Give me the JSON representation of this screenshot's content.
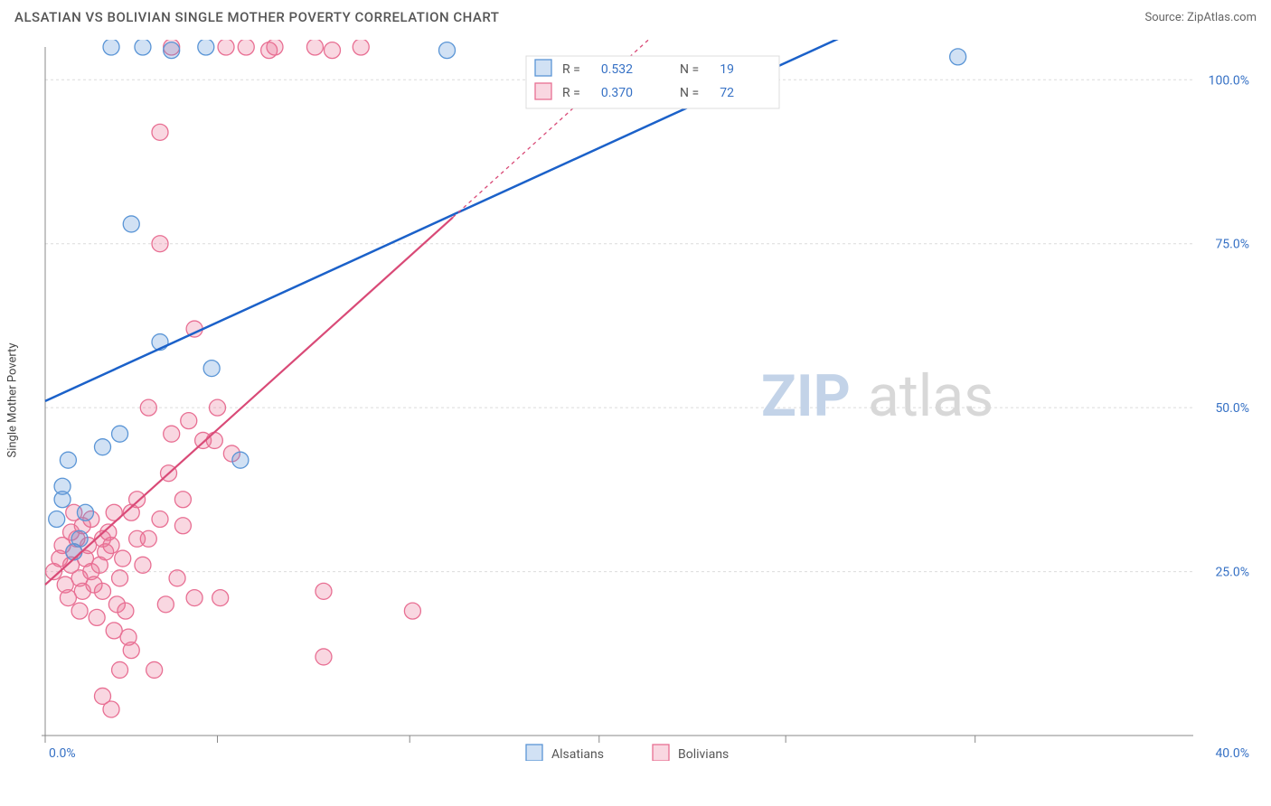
{
  "header": {
    "title": "ALSATIAN VS BOLIVIAN SINGLE MOTHER POVERTY CORRELATION CHART",
    "source_prefix": "Source: ",
    "source_name": "ZipAtlas.com"
  },
  "chart": {
    "type": "scatter",
    "ylabel": "Single Mother Poverty",
    "background_color": "#ffffff",
    "grid_color": "#dcdcdc",
    "axis_color": "#888888",
    "xlim": [
      0,
      40
    ],
    "ylim": [
      0,
      105
    ],
    "x_ticks": [
      0.0,
      40.0
    ],
    "x_tick_labels": [
      "0.0%",
      "40.0%"
    ],
    "x_minor_ticks": [
      6.0,
      12.7,
      19.3,
      25.8,
      32.4
    ],
    "y_ticks": [
      25.0,
      50.0,
      75.0,
      100.0
    ],
    "y_tick_labels": [
      "25.0%",
      "50.0%",
      "75.0%",
      "100.0%"
    ],
    "marker_radius": 9,
    "marker_fill_opacity": 0.28,
    "watermark_zip": "ZIP",
    "watermark_atlas": "atlas",
    "watermark_fontsize": 64,
    "series": [
      {
        "name": "Alsatians",
        "color": "#5a95d6",
        "stroke": "#5a95d6",
        "R": "0.532",
        "N": "19",
        "trend_color": "#1b61c9",
        "trend_width": 2.5,
        "trend_p1": [
          0,
          51
        ],
        "trend_p2": [
          40,
          131
        ],
        "points": [
          [
            0.4,
            33
          ],
          [
            0.6,
            36
          ],
          [
            0.6,
            38
          ],
          [
            0.8,
            42
          ],
          [
            1.0,
            28
          ],
          [
            1.2,
            30
          ],
          [
            1.4,
            34
          ],
          [
            2.0,
            44
          ],
          [
            2.6,
            46
          ],
          [
            3.0,
            78
          ],
          [
            4.0,
            60
          ],
          [
            5.8,
            56
          ],
          [
            6.8,
            42
          ],
          [
            2.3,
            105
          ],
          [
            3.4,
            105
          ],
          [
            4.4,
            104.5
          ],
          [
            5.6,
            105
          ],
          [
            14.0,
            104.5
          ],
          [
            31.8,
            103.5
          ]
        ]
      },
      {
        "name": "Bolivians",
        "color": "#e86f93",
        "stroke": "#e86f93",
        "R": "0.370",
        "N": "72",
        "trend_color": "#d94a77",
        "trend_width": 2.2,
        "trend_p1": [
          0,
          23
        ],
        "trend_p2": [
          14.2,
          79
        ],
        "trend_extrap_p2": [
          22,
          110
        ],
        "points": [
          [
            0.3,
            25
          ],
          [
            0.5,
            27
          ],
          [
            0.7,
            23
          ],
          [
            0.6,
            29
          ],
          [
            0.8,
            21
          ],
          [
            0.9,
            26
          ],
          [
            1.0,
            28
          ],
          [
            1.1,
            30
          ],
          [
            1.2,
            24
          ],
          [
            1.3,
            22
          ],
          [
            1.4,
            27
          ],
          [
            1.5,
            29
          ],
          [
            1.6,
            25
          ],
          [
            1.7,
            23
          ],
          [
            1.8,
            18
          ],
          [
            1.9,
            26
          ],
          [
            2.0,
            22
          ],
          [
            2.1,
            28
          ],
          [
            2.2,
            31
          ],
          [
            2.3,
            29
          ],
          [
            2.4,
            16
          ],
          [
            2.5,
            20
          ],
          [
            2.6,
            24
          ],
          [
            2.7,
            27
          ],
          [
            2.8,
            19
          ],
          [
            2.9,
            15
          ],
          [
            3.0,
            13
          ],
          [
            2.6,
            10
          ],
          [
            2.0,
            6
          ],
          [
            2.3,
            4
          ],
          [
            3.2,
            36
          ],
          [
            3.4,
            26
          ],
          [
            3.6,
            30
          ],
          [
            3.8,
            10
          ],
          [
            4.0,
            33
          ],
          [
            4.2,
            20
          ],
          [
            4.4,
            46
          ],
          [
            4.6,
            24
          ],
          [
            4.8,
            32
          ],
          [
            5.0,
            48
          ],
          [
            5.2,
            21
          ],
          [
            5.5,
            45
          ],
          [
            4.3,
            40
          ],
          [
            5.9,
            45
          ],
          [
            4.0,
            92
          ],
          [
            4.0,
            75
          ],
          [
            3.6,
            50
          ],
          [
            6.0,
            50
          ],
          [
            6.5,
            43
          ],
          [
            3.0,
            34
          ],
          [
            4.8,
            36
          ],
          [
            1.6,
            33
          ],
          [
            2.4,
            34
          ],
          [
            5.2,
            62
          ],
          [
            6.1,
            21
          ],
          [
            6.3,
            105
          ],
          [
            7.0,
            105
          ],
          [
            7.8,
            104.5
          ],
          [
            8.0,
            105
          ],
          [
            9.4,
            105
          ],
          [
            10.0,
            104.5
          ],
          [
            11.0,
            105
          ],
          [
            1.3,
            32
          ],
          [
            0.9,
            31
          ],
          [
            1.0,
            34
          ],
          [
            3.2,
            30
          ],
          [
            2.0,
            30
          ],
          [
            1.2,
            19
          ],
          [
            9.7,
            12
          ],
          [
            9.7,
            22
          ],
          [
            12.8,
            19
          ],
          [
            4.4,
            105
          ]
        ]
      }
    ],
    "bottom_legend": [
      {
        "label": "Alsatians",
        "color": "#5a95d6"
      },
      {
        "label": "Bolivians",
        "color": "#e86f93"
      }
    ],
    "stats_legend": {
      "R_label": "R =",
      "N_label": "N ="
    }
  }
}
